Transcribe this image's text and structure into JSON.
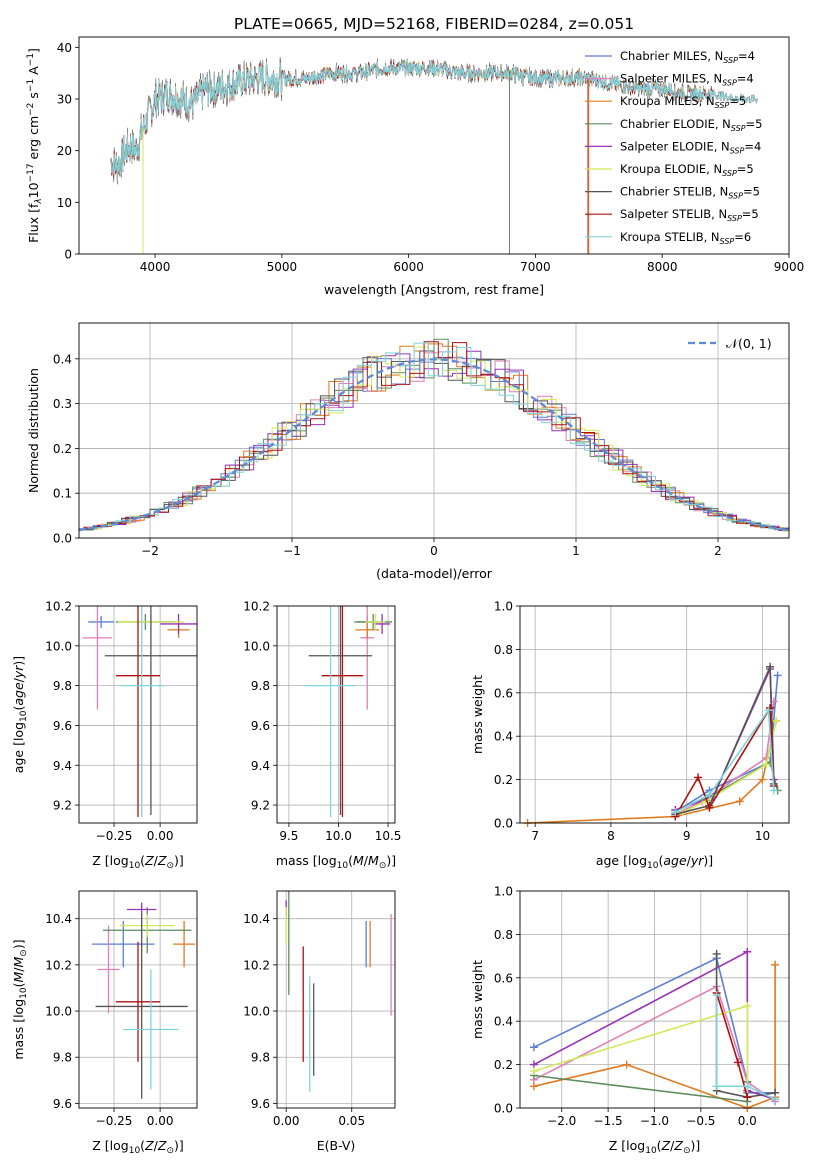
{
  "title": "PLATE=0665, MJD=52168, FIBERID=0284, z=0.051",
  "series_legend": [
    {
      "name": "Chabrier MILES, N",
      "sub": "SSP",
      "tail": "=4",
      "color": "#5b7fd6"
    },
    {
      "name": "Salpeter MILES, N",
      "sub": "SSP",
      "tail": "=4",
      "color": "#e07fb8"
    },
    {
      "name": "Kroupa MILES, N",
      "sub": "SSP",
      "tail": "=5",
      "color": "#e07a1f"
    },
    {
      "name": "Chabrier ELODIE, N",
      "sub": "SSP",
      "tail": "=5",
      "color": "#5e8c5e"
    },
    {
      "name": "Salpeter ELODIE, N",
      "sub": "SSP",
      "tail": "=4",
      "color": "#9a30b8"
    },
    {
      "name": "Kroupa ELODIE, N",
      "sub": "SSP",
      "tail": "=5",
      "color": "#d3e85a"
    },
    {
      "name": "Chabrier STELIB, N",
      "sub": "SSP",
      "tail": "=5",
      "color": "#555555"
    },
    {
      "name": "Salpeter STELIB, N",
      "sub": "SSP",
      "tail": "=5",
      "color": "#b01010"
    },
    {
      "name": "Kroupa STELIB, N",
      "sub": "SSP",
      "tail": "=6",
      "color": "#7fd4dc"
    }
  ],
  "chart_data": [
    {
      "id": "spectrum",
      "type": "line",
      "xlabel": "wavelength [Angstrom, rest frame]",
      "ylabel": "Flux [f",
      "ylabel_pieces": [
        "Flux [f",
        "λ",
        "10",
        "−17",
        " erg cm",
        "−2",
        " s",
        "−1",
        " A",
        "−1",
        "]"
      ],
      "xlim": [
        3400,
        9000
      ],
      "ylim": [
        0,
        42
      ],
      "xticks": [
        "4000",
        "5000",
        "6000",
        "7000",
        "8000",
        "9000"
      ],
      "yticks": [
        "0",
        "10",
        "20",
        "30",
        "40"
      ],
      "continuum": [
        [
          3650,
          18
        ],
        [
          3700,
          17
        ],
        [
          3800,
          21
        ],
        [
          3850,
          20
        ],
        [
          3900,
          24
        ],
        [
          3950,
          27
        ],
        [
          4000,
          30
        ],
        [
          4100,
          31
        ],
        [
          4200,
          30
        ],
        [
          4300,
          29
        ],
        [
          4400,
          32
        ],
        [
          4500,
          32
        ],
        [
          4600,
          33
        ],
        [
          4800,
          34
        ],
        [
          5000,
          34
        ],
        [
          5200,
          34
        ],
        [
          5400,
          35
        ],
        [
          5600,
          35
        ],
        [
          5800,
          36
        ],
        [
          6000,
          36
        ],
        [
          6200,
          36
        ],
        [
          6400,
          35
        ],
        [
          6600,
          35
        ],
        [
          6800,
          35
        ],
        [
          7000,
          34
        ],
        [
          7200,
          34
        ],
        [
          7400,
          34
        ],
        [
          7600,
          33
        ],
        [
          7800,
          32
        ],
        [
          8000,
          32
        ],
        [
          8200,
          31
        ],
        [
          8400,
          31
        ],
        [
          8600,
          30
        ],
        [
          8750,
          30
        ]
      ]
    },
    {
      "id": "residuals",
      "type": "step",
      "xlabel": "(data-model)/error",
      "ylabel": "Normed distribution",
      "xlim": [
        -2.5,
        2.5
      ],
      "ylim": [
        0,
        0.48
      ],
      "xticks": [
        "−2",
        "−1",
        "0",
        "1",
        "2"
      ],
      "yticks": [
        "0.0",
        "0.1",
        "0.2",
        "0.3",
        "0.4"
      ],
      "legend": "𝒩(0, 1)"
    },
    {
      "id": "age_vs_Z",
      "type": "errorbar",
      "xlabel": "Z [log10(Z/Z⊙)]",
      "ylabel": "age  [log10(age/yr)]",
      "xlim": [
        -0.44,
        0.2
      ],
      "ylim": [
        9.11,
        10.2
      ],
      "xticks": [
        "−0.25",
        "0.00"
      ],
      "yticks": [
        "9.2",
        "9.4",
        "9.6",
        "9.8",
        "10.0",
        "10.2"
      ],
      "points": [
        {
          "x": -0.32,
          "y": 10.12,
          "dx": 0.07,
          "dy": 0.03
        },
        {
          "x": -0.34,
          "y": 10.04,
          "dx": 0.08,
          "dy": 0.36
        },
        {
          "x": 0.1,
          "y": 10.08,
          "dx": 0.06,
          "dy": 0.04
        },
        {
          "x": -0.08,
          "y": 10.12,
          "dx": 0.16,
          "dy": 0.04
        },
        {
          "x": 0.1,
          "y": 10.11,
          "dx": 0.1,
          "dy": 0.05
        },
        {
          "x": -0.05,
          "y": 10.12,
          "dx": 0.18,
          "dy": 0.04
        },
        {
          "x": -0.05,
          "y": 9.95,
          "dx": 0.25,
          "dy": 0.8
        },
        {
          "x": -0.12,
          "y": 9.85,
          "dx": 0.12,
          "dy": 0.71
        },
        {
          "x": -0.1,
          "y": 9.8,
          "dx": 0.12,
          "dy": 0.66
        }
      ]
    },
    {
      "id": "age_vs_mass",
      "type": "errorbar",
      "xlabel": "mass [log10(M/M⊙)]",
      "ylabel": "",
      "xlim": [
        9.38,
        10.57
      ],
      "ylim": [
        9.11,
        10.2
      ],
      "xticks": [
        "9.5",
        "10.0",
        "10.5"
      ],
      "yticks": [
        "9.2",
        "9.4",
        "9.6",
        "9.8",
        "10.0",
        "10.2"
      ],
      "points": [
        {
          "x": 10.29,
          "y": 10.12,
          "dx": 0.1,
          "dy": 0.03
        },
        {
          "x": 10.29,
          "y": 10.04,
          "dx": 0.07,
          "dy": 0.36
        },
        {
          "x": 10.29,
          "y": 10.08,
          "dx": 0.12,
          "dy": 0.04
        },
        {
          "x": 10.35,
          "y": 10.12,
          "dx": 0.19,
          "dy": 0.04
        },
        {
          "x": 10.44,
          "y": 10.11,
          "dx": 0.08,
          "dy": 0.05
        },
        {
          "x": 10.37,
          "y": 10.12,
          "dx": 0.1,
          "dy": 0.04
        },
        {
          "x": 10.02,
          "y": 9.95,
          "dx": 0.32,
          "dy": 0.8
        },
        {
          "x": 10.04,
          "y": 9.85,
          "dx": 0.21,
          "dy": 0.71
        },
        {
          "x": 9.92,
          "y": 9.8,
          "dx": 0.26,
          "dy": 0.66
        }
      ]
    },
    {
      "id": "weight_vs_age",
      "type": "line",
      "xlabel": "age  [log10(age/yr)]",
      "ylabel": "mass weight",
      "xlim": [
        6.8,
        10.35
      ],
      "ylim": [
        0,
        1
      ],
      "xticks": [
        "7",
        "8",
        "9",
        "10"
      ],
      "yticks": [
        "0.0",
        "0.2",
        "0.4",
        "0.6",
        "0.8",
        "1.0"
      ],
      "series": [
        {
          "x": [
            8.85,
            9.3,
            10.1,
            10.2
          ],
          "y": [
            0.05,
            0.15,
            0.28,
            0.68
          ]
        },
        {
          "x": [
            8.85,
            9.2,
            10.05,
            10.15
          ],
          "y": [
            0.04,
            0.1,
            0.3,
            0.56
          ]
        },
        {
          "x": [
            6.9,
            8.85,
            9.7,
            10.0,
            10.18
          ],
          "y": [
            0.0,
            0.03,
            0.1,
            0.2,
            0.47
          ]
        },
        {
          "x": [
            8.85,
            9.3,
            10.1,
            10.2
          ],
          "y": [
            0.06,
            0.12,
            0.28,
            0.15
          ]
        },
        {
          "x": [
            8.85,
            9.35,
            10.1,
            10.15
          ],
          "y": [
            0.06,
            0.12,
            0.71,
            0.2
          ]
        },
        {
          "x": [
            8.95,
            9.25,
            10.05,
            10.18
          ],
          "y": [
            0.05,
            0.1,
            0.27,
            0.47
          ]
        },
        {
          "x": [
            8.85,
            9.3,
            10.1,
            10.15
          ],
          "y": [
            0.04,
            0.08,
            0.72,
            0.18
          ]
        },
        {
          "x": [
            8.85,
            9.15,
            9.3,
            10.1,
            10.15
          ],
          "y": [
            0.03,
            0.21,
            0.07,
            0.53,
            0.17
          ]
        },
        {
          "x": [
            8.85,
            9.3,
            10.08,
            10.15
          ],
          "y": [
            0.05,
            0.13,
            0.52,
            0.15
          ]
        }
      ]
    },
    {
      "id": "mass_vs_Z",
      "type": "errorbar",
      "xlabel": "Z [log10(Z/Z⊙)]",
      "ylabel": "mass [log10(M/M⊙)]",
      "xlim": [
        -0.44,
        0.2
      ],
      "ylim": [
        9.58,
        10.52
      ],
      "xticks": [
        "−0.25",
        "0.00"
      ],
      "yticks": [
        "9.6",
        "9.8",
        "10.0",
        "10.2",
        "10.4"
      ],
      "points": [
        {
          "x": -0.2,
          "y": 10.29,
          "dx": 0.17,
          "dy": 0.1
        },
        {
          "x": -0.28,
          "y": 10.18,
          "dx": 0.06,
          "dy": 0.19
        },
        {
          "x": 0.13,
          "y": 10.29,
          "dx": 0.06,
          "dy": 0.1
        },
        {
          "x": -0.07,
          "y": 10.35,
          "dx": 0.24,
          "dy": 0.1
        },
        {
          "x": -0.1,
          "y": 10.44,
          "dx": 0.08,
          "dy": 0.03
        },
        {
          "x": -0.07,
          "y": 10.37,
          "dx": 0.15,
          "dy": 0.05
        },
        {
          "x": -0.1,
          "y": 10.02,
          "dx": 0.25,
          "dy": 0.4
        },
        {
          "x": -0.12,
          "y": 10.04,
          "dx": 0.12,
          "dy": 0.26
        },
        {
          "x": -0.05,
          "y": 9.92,
          "dx": 0.15,
          "dy": 0.26
        }
      ]
    },
    {
      "id": "mass_vs_ebv",
      "type": "errorbar",
      "xlabel": "E(B-V)",
      "ylabel": "",
      "xlim": [
        -0.007,
        0.083
      ],
      "ylim": [
        9.58,
        10.52
      ],
      "xticks": [
        "0.00",
        "0.05"
      ],
      "yticks": [
        "9.6",
        "9.8",
        "10.0",
        "10.2",
        "10.4"
      ],
      "points": [
        {
          "x": 0.061,
          "y": 10.29,
          "dy": 0.1
        },
        {
          "x": 0.08,
          "y": 10.2,
          "dy": 0.22
        },
        {
          "x": 0.064,
          "y": 10.29,
          "dy": 0.1
        },
        {
          "x": 0.002,
          "y": 10.3,
          "dy": 0.23
        },
        {
          "x": 0.0,
          "y": 10.44,
          "dy": 0.04
        },
        {
          "x": 0.0,
          "y": 10.37,
          "dy": 0.08
        },
        {
          "x": 0.021,
          "y": 9.92,
          "dy": 0.2
        },
        {
          "x": 0.013,
          "y": 10.03,
          "dy": 0.25
        },
        {
          "x": 0.018,
          "y": 9.9,
          "dy": 0.25
        }
      ]
    },
    {
      "id": "weight_vs_Z",
      "type": "line",
      "xlabel": "Z [log10(Z/Z⊙)]",
      "ylabel": "mass weight",
      "xlim": [
        -2.45,
        0.45
      ],
      "ylim": [
        0,
        1
      ],
      "xticks": [
        "−2.0",
        "−1.5",
        "−1.0",
        "−0.5",
        "0.0"
      ],
      "yticks": [
        "0.0",
        "0.2",
        "0.4",
        "0.6",
        "0.8",
        "1.0"
      ],
      "series": [
        {
          "x": [
            -2.3,
            -0.33,
            0.0,
            0.0,
            0.3
          ],
          "y": [
            0.28,
            0.69,
            0.12,
            0.07,
            0.07
          ]
        },
        {
          "x": [
            -2.3,
            -0.33,
            0.0,
            0.3
          ],
          "y": [
            0.13,
            0.56,
            0.12,
            0.03
          ]
        },
        {
          "x": [
            -2.3,
            -1.3,
            0.0,
            0.3,
            0.3
          ],
          "y": [
            0.1,
            0.2,
            0.0,
            0.05,
            0.66
          ]
        },
        {
          "x": [
            -2.3,
            0.0,
            0.0
          ],
          "y": [
            0.15,
            0.03,
            0.12
          ]
        },
        {
          "x": [
            -2.3,
            0.0,
            0.0,
            0.3
          ],
          "y": [
            0.2,
            0.72,
            0.08,
            0.04
          ]
        },
        {
          "x": [
            -2.3,
            0.0,
            0.0
          ],
          "y": [
            0.17,
            0.47,
            0.05
          ]
        },
        {
          "x": [
            -0.33,
            -0.33,
            0.0,
            0.3
          ],
          "y": [
            0.71,
            0.08,
            0.05,
            0.07
          ]
        },
        {
          "x": [
            -0.33,
            -0.1,
            0.0
          ],
          "y": [
            0.53,
            0.21,
            0.05
          ]
        },
        {
          "x": [
            -0.33,
            -0.33,
            0.0,
            0.3
          ],
          "y": [
            0.52,
            0.1,
            0.1,
            0.04
          ]
        }
      ]
    }
  ]
}
